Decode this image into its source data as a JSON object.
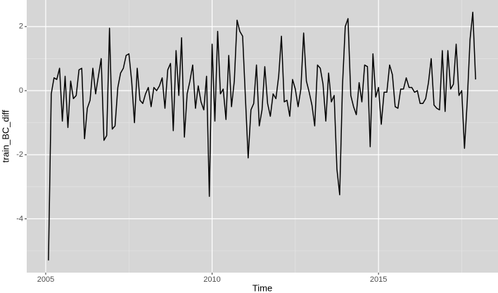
{
  "chart_data": {
    "type": "line",
    "x_label": "Time",
    "y_label": "train_BC_diff",
    "x": [
      2005.083,
      2005.167,
      2005.25,
      2005.333,
      2005.417,
      2005.5,
      2005.583,
      2005.667,
      2005.75,
      2005.833,
      2005.917,
      2006,
      2006.083,
      2006.167,
      2006.25,
      2006.333,
      2006.417,
      2006.5,
      2006.583,
      2006.667,
      2006.75,
      2006.833,
      2006.917,
      2007,
      2007.083,
      2007.167,
      2007.25,
      2007.333,
      2007.417,
      2007.5,
      2007.583,
      2007.667,
      2007.75,
      2007.833,
      2007.917,
      2008,
      2008.083,
      2008.167,
      2008.25,
      2008.333,
      2008.417,
      2008.5,
      2008.583,
      2008.667,
      2008.75,
      2008.833,
      2008.917,
      2009,
      2009.083,
      2009.167,
      2009.25,
      2009.333,
      2009.417,
      2009.5,
      2009.583,
      2009.667,
      2009.75,
      2009.833,
      2009.917,
      2010,
      2010.083,
      2010.167,
      2010.25,
      2010.333,
      2010.417,
      2010.5,
      2010.583,
      2010.667,
      2010.75,
      2010.833,
      2010.917,
      2011,
      2011.083,
      2011.167,
      2011.25,
      2011.333,
      2011.417,
      2011.5,
      2011.583,
      2011.667,
      2011.75,
      2011.833,
      2011.917,
      2012,
      2012.083,
      2012.167,
      2012.25,
      2012.333,
      2012.417,
      2012.5,
      2012.583,
      2012.667,
      2012.75,
      2012.833,
      2012.917,
      2013,
      2013.083,
      2013.167,
      2013.25,
      2013.333,
      2013.417,
      2013.5,
      2013.583,
      2013.667,
      2013.75,
      2013.833,
      2013.917,
      2014,
      2014.083,
      2014.167,
      2014.25,
      2014.333,
      2014.417,
      2014.5,
      2014.583,
      2014.667,
      2014.75,
      2014.833,
      2014.917,
      2015,
      2015.083,
      2015.167,
      2015.25,
      2015.333,
      2015.417,
      2015.5,
      2015.583,
      2015.667,
      2015.75,
      2015.833,
      2015.917,
      2016,
      2016.083,
      2016.167,
      2016.25,
      2016.333,
      2016.417,
      2016.5,
      2016.583,
      2016.667,
      2016.75,
      2016.833,
      2016.917,
      2017,
      2017.083,
      2017.167,
      2017.25,
      2017.333,
      2017.417,
      2017.5,
      2017.583,
      2017.667,
      2017.75,
      2017.833,
      2017.917
    ],
    "series": [
      {
        "color": "#000000",
        "values": [
          -5.3,
          -0.1,
          0.4,
          0.35,
          0.7,
          -0.95,
          0.45,
          -1.15,
          0.3,
          -0.25,
          -0.15,
          0.65,
          0.7,
          -1.5,
          -0.55,
          -0.3,
          0.7,
          -0.1,
          0.45,
          1.0,
          -1.55,
          -1.4,
          1.95,
          -1.2,
          -1.1,
          0.1,
          0.55,
          0.7,
          1.1,
          1.15,
          0.3,
          -1.0,
          0.7,
          -0.3,
          -0.4,
          -0.1,
          0.1,
          -0.5,
          0.1,
          0.0,
          0.15,
          0.4,
          -0.55,
          0.65,
          0.85,
          -1.25,
          1.25,
          -0.15,
          1.65,
          -1.45,
          -0.1,
          0.3,
          0.8,
          -0.55,
          0.15,
          -0.35,
          -0.6,
          0.45,
          -3.3,
          1.45,
          -0.95,
          1.85,
          -0.1,
          0.05,
          -0.9,
          1.1,
          -0.5,
          0.3,
          2.2,
          1.85,
          1.7,
          -0.2,
          -2.1,
          -0.6,
          -0.4,
          0.8,
          -1.1,
          -0.6,
          0.75,
          -0.4,
          -0.8,
          -0.1,
          -0.25,
          0.45,
          1.7,
          -0.35,
          -0.3,
          -0.8,
          0.35,
          0.05,
          -0.5,
          0.05,
          1.8,
          0.3,
          -0.05,
          -0.45,
          -1.1,
          0.8,
          0.7,
          0.2,
          -0.95,
          0.55,
          -0.35,
          -0.15,
          -2.45,
          -3.25,
          0.15,
          2.0,
          2.25,
          -0.15,
          -0.5,
          -0.75,
          0.25,
          -0.35,
          0.8,
          0.75,
          -1.75,
          1.15,
          -0.2,
          0.1,
          -1.05,
          -0.05,
          -0.05,
          0.8,
          0.5,
          -0.5,
          -0.55,
          0.05,
          0.05,
          0.4,
          0.1,
          0.1,
          -0.05,
          0.0,
          -0.4,
          -0.4,
          -0.25,
          0.25,
          1.0,
          -0.45,
          -0.55,
          -0.6,
          1.25,
          -0.65,
          1.25,
          0.05,
          0.2,
          1.45,
          -0.15,
          0.0,
          -1.8,
          -0.3,
          1.6,
          2.45,
          0.35
        ]
      }
    ],
    "xlim": [
      2004.43,
      2018.59
    ],
    "ylim": [
      -5.68,
      2.83
    ],
    "xticks": [
      2005,
      2010,
      2015
    ],
    "yticks": [
      -4,
      -2,
      0,
      2
    ],
    "x_minor_ticks": [
      2007.5,
      2012.5,
      2017.5
    ],
    "y_minor_ticks": [
      -5,
      -3,
      -1,
      1
    ],
    "grid": true
  }
}
